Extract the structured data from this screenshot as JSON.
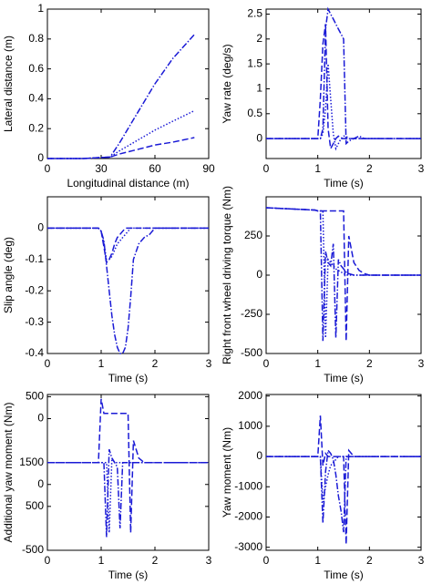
{
  "chart_data": [
    {
      "type": "line",
      "xlabel": "Longitudinal distance (m)",
      "ylabel": "Lateral distance (m)",
      "x": [
        0,
        20,
        35,
        40,
        50,
        60,
        70,
        82
      ],
      "xlim": [
        0,
        90
      ],
      "xticks": [
        0,
        30,
        60,
        90
      ],
      "ylim": [
        0,
        1
      ],
      "yticks": [
        0,
        0.2,
        0.4,
        0.6,
        0.8,
        1
      ],
      "series": [
        {
          "color": "#1a1ad6",
          "dash": "dashdot",
          "values": [
            0,
            0,
            0.01,
            0.1,
            0.3,
            0.5,
            0.67,
            0.83
          ]
        },
        {
          "color": "#1a1ad6",
          "dash": "dotted",
          "values": [
            0,
            0,
            0.01,
            0.05,
            0.12,
            0.19,
            0.25,
            0.32
          ]
        },
        {
          "color": "#1a1ad6",
          "dash": "dashed",
          "values": [
            0,
            0,
            0.01,
            0.03,
            0.06,
            0.09,
            0.11,
            0.14
          ]
        }
      ]
    },
    {
      "type": "line",
      "xlabel": "Time (s)",
      "ylabel": "Yaw rate (deg/s)",
      "x": [
        0,
        0.95,
        1.0,
        1.05,
        1.1,
        1.15,
        1.2,
        1.25,
        1.3,
        1.35,
        1.4,
        1.45,
        1.5,
        1.55,
        1.6,
        1.7,
        1.8,
        1.9,
        2.0,
        2.5,
        3.0
      ],
      "xlim": [
        0,
        3
      ],
      "xticks": [
        0,
        1,
        2,
        3
      ],
      "ylim": [
        -0.4,
        2.6
      ],
      "yticks": [
        0,
        0.5,
        1,
        1.5,
        2,
        2.5
      ],
      "series": [
        {
          "color": "#1a1ad6",
          "dash": "dashed",
          "values": [
            0,
            0,
            0,
            0.8,
            1.9,
            2.3,
            0.2,
            -0.2,
            -0.1,
            0,
            0.05,
            0,
            0,
            0,
            0,
            0,
            0,
            0,
            0,
            0,
            0
          ]
        },
        {
          "color": "#1a1ad6",
          "dash": "dashdot",
          "values": [
            0,
            0,
            0,
            0,
            0.2,
            2.2,
            2.6,
            2.5,
            2.4,
            2.3,
            2.2,
            2.1,
            2.0,
            -0.1,
            -0.05,
            0,
            0.05,
            0,
            0,
            0,
            0
          ]
        },
        {
          "color": "#1a1ad6",
          "dash": "dotted",
          "values": [
            0,
            0,
            0,
            0,
            0.1,
            0.6,
            1.5,
            0.8,
            0.1,
            -0.2,
            -0.1,
            0,
            0.05,
            0.05,
            0,
            0,
            0,
            0,
            0,
            0,
            0
          ]
        }
      ]
    },
    {
      "type": "line",
      "xlabel": "Time (s)",
      "ylabel": "Slip angle (deg)",
      "x": [
        0,
        0.95,
        1.0,
        1.05,
        1.1,
        1.15,
        1.2,
        1.25,
        1.3,
        1.35,
        1.4,
        1.45,
        1.5,
        1.55,
        1.6,
        1.7,
        1.8,
        1.9,
        2.0,
        2.5,
        3.0
      ],
      "xlim": [
        0,
        3
      ],
      "xticks": [
        0,
        1,
        2,
        3
      ],
      "ylim": [
        -0.4,
        0.1
      ],
      "yticks": [
        -0.4,
        -0.3,
        -0.2,
        -0.1,
        0
      ],
      "series": [
        {
          "color": "#1a1ad6",
          "dash": "dashed",
          "values": [
            0,
            0,
            -0.01,
            -0.06,
            -0.11,
            -0.1,
            -0.08,
            -0.05,
            -0.03,
            -0.02,
            -0.01,
            0,
            0,
            0,
            0,
            0,
            0,
            0,
            0,
            0,
            0
          ]
        },
        {
          "color": "#1a1ad6",
          "dash": "dashdot",
          "values": [
            0,
            0,
            -0.01,
            -0.04,
            -0.12,
            -0.2,
            -0.28,
            -0.34,
            -0.38,
            -0.4,
            -0.4,
            -0.38,
            -0.32,
            -0.22,
            -0.1,
            -0.05,
            -0.03,
            -0.02,
            0,
            0,
            0
          ]
        },
        {
          "color": "#1a1ad6",
          "dash": "dotted",
          "values": [
            0,
            0,
            -0.01,
            -0.05,
            -0.1,
            -0.1,
            -0.09,
            -0.07,
            -0.05,
            -0.04,
            -0.03,
            -0.02,
            -0.01,
            0,
            0,
            0,
            0,
            0,
            0,
            0,
            0
          ]
        }
      ]
    },
    {
      "type": "line",
      "xlabel": "Time (s)",
      "ylabel": "Right front wheel driving torque (Nm)",
      "x": [
        0,
        0.95,
        1.0,
        1.05,
        1.1,
        1.15,
        1.2,
        1.25,
        1.3,
        1.35,
        1.4,
        1.45,
        1.5,
        1.55,
        1.6,
        1.7,
        1.8,
        1.9,
        2.0,
        2.5,
        3.0
      ],
      "xlim": [
        0,
        3
      ],
      "xticks": [
        0,
        1,
        2,
        3
      ],
      "ylim": [
        -500,
        500
      ],
      "yticks": [
        -500,
        -250,
        0,
        250
      ],
      "series": [
        {
          "color": "#1a1ad6",
          "dash": "dashed",
          "values": [
            430,
            415,
            410,
            410,
            410,
            410,
            410,
            410,
            410,
            410,
            410,
            410,
            410,
            -420,
            250,
            80,
            30,
            10,
            0,
            0,
            0
          ]
        },
        {
          "color": "#1a1ad6",
          "dash": "dashdot",
          "values": [
            430,
            415,
            410,
            410,
            -420,
            150,
            80,
            60,
            200,
            -400,
            100,
            60,
            40,
            20,
            10,
            0,
            0,
            0,
            0,
            0,
            0
          ]
        },
        {
          "color": "#1a1ad6",
          "dash": "dotted",
          "values": [
            430,
            415,
            410,
            410,
            410,
            -400,
            100,
            80,
            60,
            40,
            30,
            20,
            10,
            0,
            0,
            0,
            0,
            0,
            0,
            0,
            0
          ]
        }
      ]
    },
    {
      "type": "line",
      "xlabel": "Time (s)",
      "ylabel": "Additional yaw moment (Nm)",
      "x": [
        0,
        0.95,
        1.0,
        1.05,
        1.1,
        1.15,
        1.2,
        1.25,
        1.3,
        1.35,
        1.4,
        1.45,
        1.5,
        1.55,
        1.6,
        1.7,
        1.8,
        1.9,
        2.0,
        2.5,
        3.0
      ],
      "xlim": [
        0,
        3
      ],
      "xticks": [
        0,
        1,
        2,
        3
      ],
      "ylim": [
        -3000,
        550
      ],
      "yticks": [
        500,
        0,
        {
          "value": -1000,
          "label": "1500"
        },
        {
          "value": -1500,
          "label": "0"
        },
        {
          "value": -2000,
          "label": "500"
        },
        {
          "value": -3000,
          "label": "-500"
        }
      ],
      "series": [
        {
          "color": "#1a1ad6",
          "dash": "dashed",
          "values": [
            -1000,
            -1000,
            450,
            120,
            120,
            120,
            120,
            120,
            120,
            120,
            120,
            120,
            120,
            -2600,
            -500,
            -900,
            -1000,
            -1000,
            -1000,
            -1000,
            -1000
          ]
        },
        {
          "color": "#1a1ad6",
          "dash": "dashdot",
          "values": [
            -1000,
            -1000,
            -1000,
            -1000,
            -2700,
            -700,
            -900,
            -1000,
            -1100,
            -2500,
            -1000,
            -1000,
            -1000,
            -1000,
            -1000,
            -1000,
            -1000,
            -1000,
            -1000,
            -1000,
            -1000
          ]
        },
        {
          "color": "#1a1ad6",
          "dash": "dotted",
          "values": [
            -1000,
            -1000,
            -1000,
            -1000,
            -1000,
            -2600,
            -900,
            -1000,
            -1000,
            -1000,
            -1000,
            -1000,
            -1000,
            -1000,
            -1000,
            -1000,
            -1000,
            -1000,
            -1000,
            -1000,
            -1000
          ]
        }
      ]
    },
    {
      "type": "line",
      "xlabel": "Time (s)",
      "ylabel": "Yaw moment (Nm)",
      "x": [
        0,
        0.95,
        1.0,
        1.05,
        1.1,
        1.15,
        1.2,
        1.25,
        1.3,
        1.35,
        1.4,
        1.45,
        1.5,
        1.55,
        1.6,
        1.7,
        1.8,
        1.9,
        2.0,
        2.5,
        3.0
      ],
      "xlim": [
        0,
        3
      ],
      "xticks": [
        0,
        1,
        2,
        3
      ],
      "ylim": [
        -3100,
        2050
      ],
      "yticks": [
        -3000,
        -2000,
        -1000,
        0,
        1000,
        2000
      ],
      "series": [
        {
          "color": "#1a1ad6",
          "dash": "dashed",
          "values": [
            0,
            0,
            0,
            1350,
            -300,
            100,
            0,
            0,
            0,
            0,
            0,
            0,
            0,
            -2900,
            200,
            0,
            0,
            0,
            0,
            0,
            0
          ]
        },
        {
          "color": "#1a1ad6",
          "dash": "dashdot",
          "values": [
            0,
            0,
            0,
            0,
            -2200,
            -500,
            200,
            100,
            -100,
            -600,
            -1300,
            -1800,
            -2500,
            0,
            0,
            0,
            0,
            0,
            0,
            0,
            0
          ]
        },
        {
          "color": "#1a1ad6",
          "dash": "dotted",
          "values": [
            0,
            0,
            0,
            0,
            -1500,
            -1000,
            -600,
            -300,
            -200,
            -100,
            0,
            0,
            0,
            0,
            0,
            0,
            0,
            0,
            0,
            0,
            0
          ]
        }
      ]
    }
  ]
}
